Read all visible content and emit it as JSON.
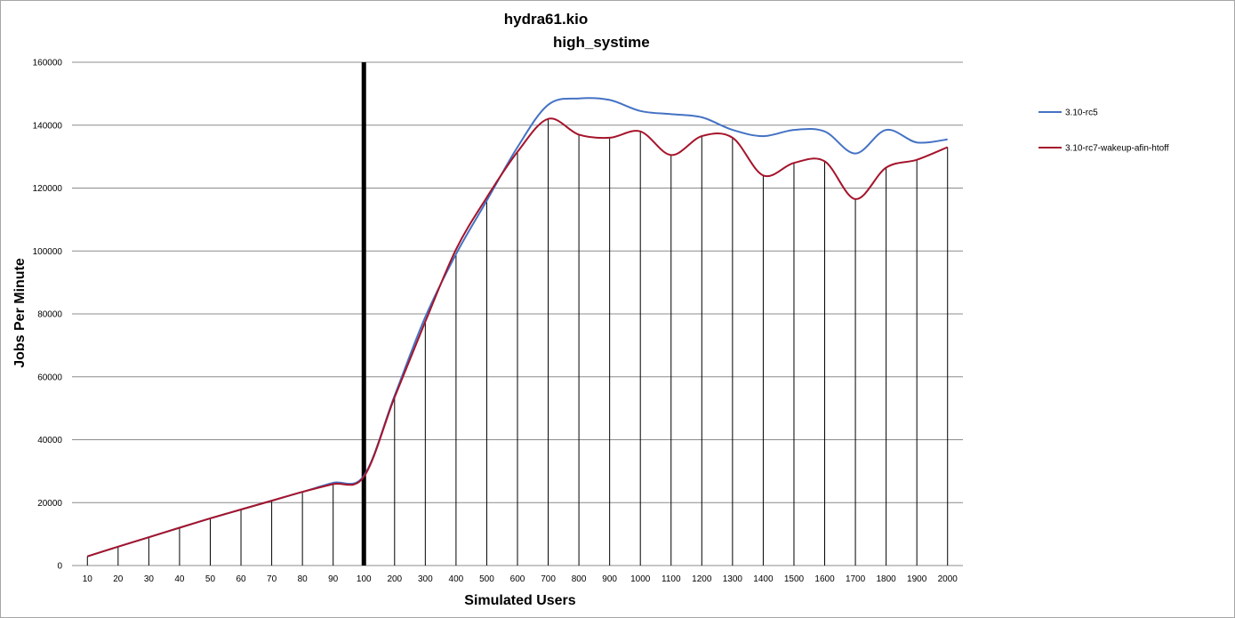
{
  "chart_data": {
    "type": "line",
    "title": "hydra61.kio",
    "subtitle": "high_systime",
    "xlabel": "Simulated Users",
    "ylabel": "Jobs Per Minute",
    "categories": [
      "10",
      "20",
      "30",
      "40",
      "50",
      "60",
      "70",
      "80",
      "90",
      "100",
      "200",
      "300",
      "400",
      "500",
      "600",
      "700",
      "800",
      "900",
      "1000",
      "1100",
      "1200",
      "1300",
      "1400",
      "1500",
      "1600",
      "1700",
      "1800",
      "1900",
      "2000"
    ],
    "ylim": [
      0,
      160000
    ],
    "yticks": [
      0,
      20000,
      40000,
      60000,
      80000,
      100000,
      120000,
      140000,
      160000
    ],
    "grid": "horizontal",
    "legend_position": "right",
    "marker_category": "100",
    "series": [
      {
        "name": "3.10-rc5",
        "color": "#4472c4",
        "values": [
          2900,
          6000,
          9000,
          12000,
          15000,
          17800,
          20600,
          23400,
          26300,
          28500,
          54000,
          79000,
          99000,
          116000,
          133000,
          146500,
          148500,
          148000,
          144500,
          143500,
          142500,
          138500,
          136500,
          138500,
          138000,
          131000,
          138500,
          134500,
          135500
        ]
      },
      {
        "name": "3.10-rc7-wakeup-afin-htoff",
        "color": "#a5142b",
        "values": [
          2900,
          6000,
          9000,
          12000,
          15000,
          17800,
          20600,
          23400,
          25900,
          28200,
          53500,
          77500,
          100500,
          117000,
          131500,
          142000,
          137000,
          136000,
          138000,
          130500,
          136500,
          136000,
          124000,
          128000,
          128500,
          116500,
          126500,
          129000,
          133000
        ]
      }
    ]
  }
}
